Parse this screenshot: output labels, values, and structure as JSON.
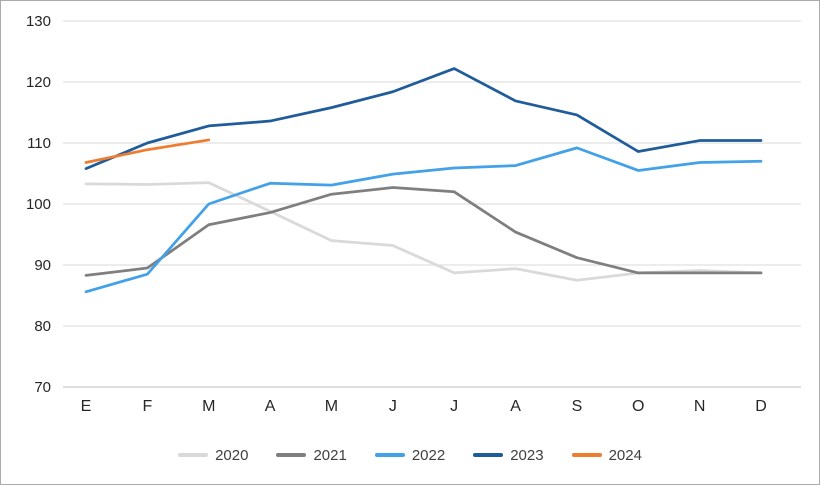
{
  "frame": {
    "background": "#FFFFFF",
    "border_color": "#ABABAB"
  },
  "chart_data": {
    "type": "line",
    "title": "",
    "xlabel": "",
    "ylabel": "",
    "categories": [
      "E",
      "F",
      "M",
      "A",
      "M",
      "J",
      "J",
      "A",
      "S",
      "O",
      "N",
      "D"
    ],
    "series": [
      {
        "name": "2020",
        "color": "#D9D9D9",
        "values": [
          103.3,
          103.2,
          103.5,
          98.8,
          94.0,
          93.2,
          88.7,
          89.4,
          87.5,
          88.7,
          89.1,
          88.7
        ]
      },
      {
        "name": "2021",
        "color": "#7F7F7F",
        "values": [
          88.3,
          89.5,
          96.6,
          98.6,
          101.6,
          102.7,
          102.0,
          95.4,
          91.2,
          88.7,
          88.7,
          88.7
        ]
      },
      {
        "name": "2022",
        "color": "#42A1E8",
        "values": [
          85.6,
          88.5,
          100.0,
          103.4,
          103.1,
          104.9,
          105.9,
          106.3,
          109.2,
          105.5,
          106.8,
          107.0
        ]
      },
      {
        "name": "2023",
        "color": "#1F5C99",
        "values": [
          105.8,
          110.0,
          112.8,
          113.6,
          115.8,
          118.4,
          122.2,
          116.9,
          114.6,
          108.6,
          110.4,
          110.4
        ]
      },
      {
        "name": "2024",
        "color": "#ED7D31",
        "values": [
          106.8,
          108.9,
          110.5,
          null,
          null,
          null,
          null,
          null,
          null,
          null,
          null,
          null
        ]
      }
    ],
    "ylim": [
      70,
      130
    ],
    "yticks": [
      70,
      80,
      90,
      100,
      110,
      120,
      130
    ],
    "grid": "horizontal",
    "gridline_color": "#D9D9D9",
    "axis_line_color": "#BFBFBF",
    "tick_label_color": "#262626",
    "y_tick_font_size": 15,
    "x_tick_font_size": 16,
    "line_width": 2.75,
    "legend_position": "bottom"
  }
}
